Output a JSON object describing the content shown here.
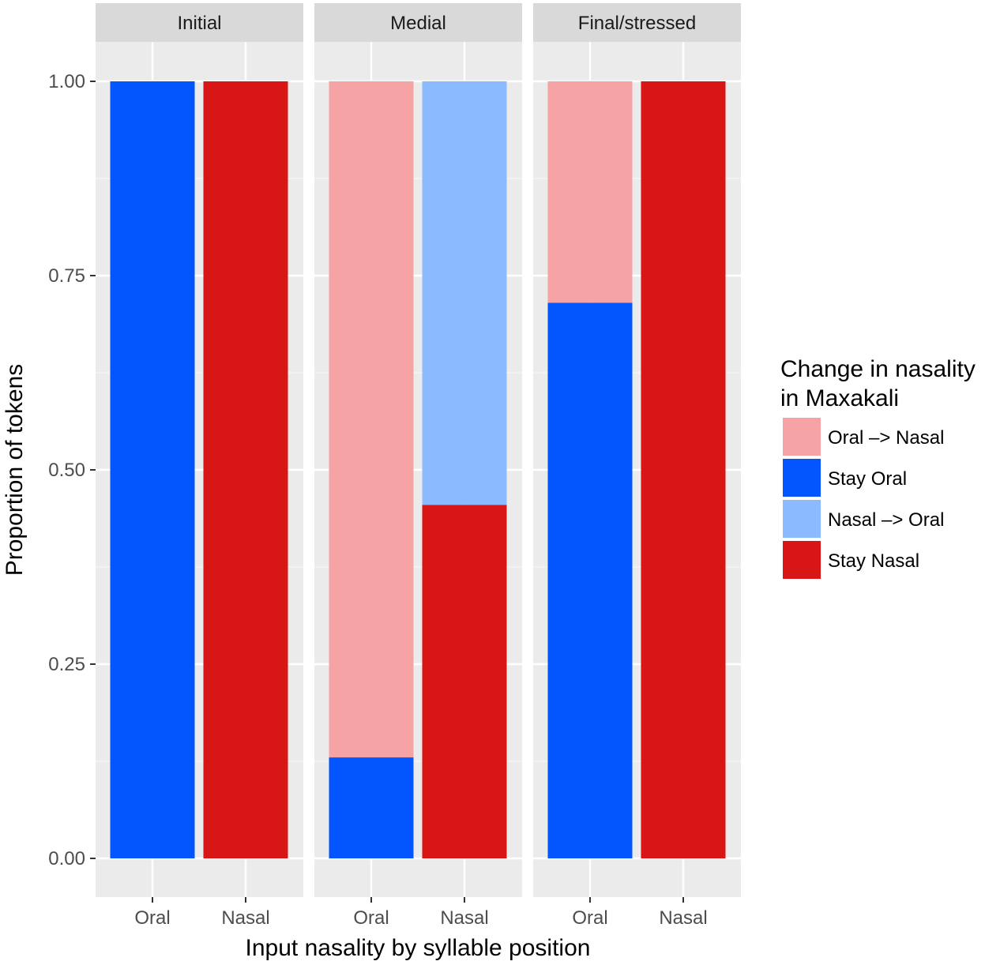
{
  "chart_data": {
    "type": "bar",
    "stacked": true,
    "facets": [
      "Initial",
      "Medial",
      "Final/stressed"
    ],
    "categories": [
      "Oral",
      "Nasal"
    ],
    "xlabel": "Input nasality by syllable position",
    "ylabel": "Proportion of tokens",
    "ylim": [
      0,
      1
    ],
    "yticks": [
      "0.00",
      "0.25",
      "0.50",
      "0.75",
      "1.00"
    ],
    "ytick_values": [
      0,
      0.25,
      0.5,
      0.75,
      1.0
    ],
    "legend": {
      "title_lines": [
        "Change in nasality",
        "in Maxakali"
      ],
      "placement": "right"
    },
    "series": [
      {
        "name": "Oral –> Nasal",
        "color": "#F6A3A5",
        "values": [
          [
            0,
            0
          ],
          [
            0.87,
            0
          ],
          [
            0.285,
            0
          ]
        ]
      },
      {
        "name": "Stay Oral",
        "color": "#0355FE",
        "values": [
          [
            1.0,
            0
          ],
          [
            0.13,
            0
          ],
          [
            0.715,
            0
          ]
        ]
      },
      {
        "name": "Nasal –> Oral",
        "color": "#8BBBFE",
        "values": [
          [
            0,
            0
          ],
          [
            0,
            0.545
          ],
          [
            0,
            0
          ]
        ]
      },
      {
        "name": "Stay Nasal",
        "color": "#D81616",
        "values": [
          [
            0,
            1.0
          ],
          [
            0,
            0.455
          ],
          [
            0,
            1.0
          ]
        ]
      }
    ],
    "stack_order_bottom_to_top": [
      "Stay Oral",
      "Stay Nasal",
      "Nasal –> Oral",
      "Oral –> Nasal"
    ],
    "grid": true,
    "panel_background": "#EBEBEB",
    "strip_background": "#D9D9D9"
  }
}
